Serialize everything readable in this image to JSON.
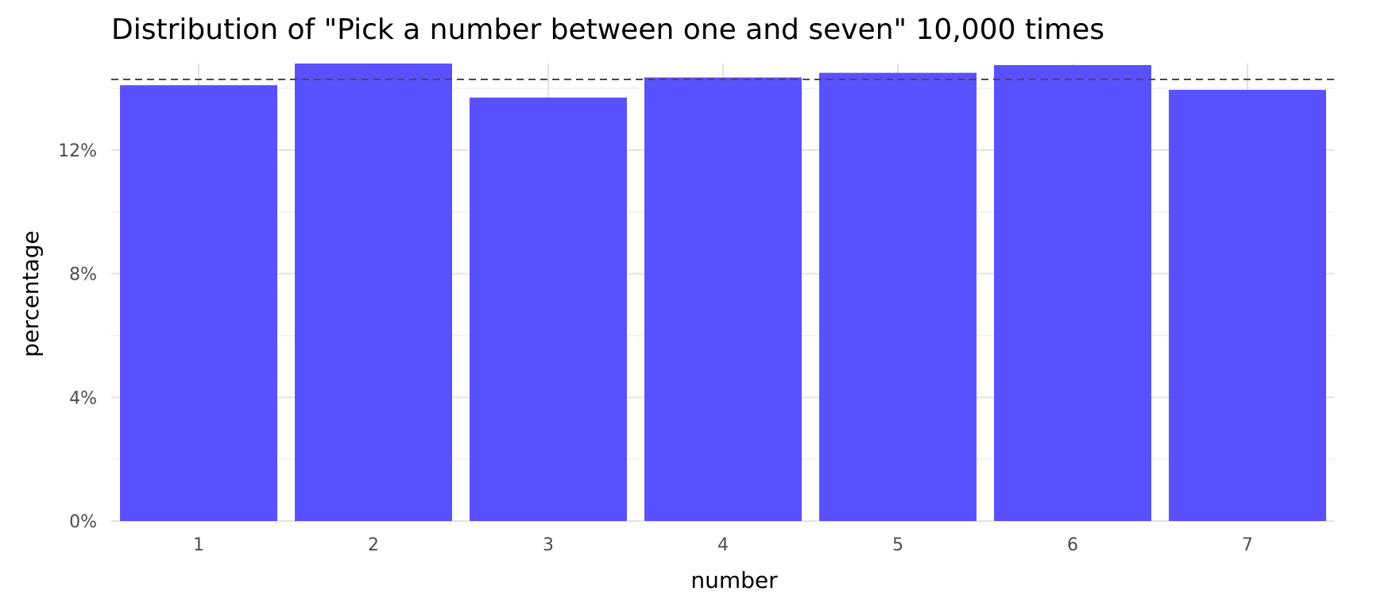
{
  "chart_data": {
    "type": "bar",
    "title": "Distribution of \"Pick a number between one and seven\" 10,000 times",
    "xlabel": "number",
    "ylabel": "percentage",
    "categories": [
      "1",
      "2",
      "3",
      "4",
      "5",
      "6",
      "7"
    ],
    "values": [
      14.1,
      14.8,
      13.7,
      14.35,
      14.5,
      14.75,
      13.95
    ],
    "ylim": [
      0,
      14.8
    ],
    "y_ticks": [
      0,
      4,
      8,
      12
    ],
    "y_tick_labels": [
      "0%",
      "4%",
      "8%",
      "12%"
    ],
    "y_minor_ticks": [
      2,
      6,
      10,
      14
    ],
    "reference_line": 14.2857,
    "grid": true,
    "bar_color": "#5a51fe"
  }
}
